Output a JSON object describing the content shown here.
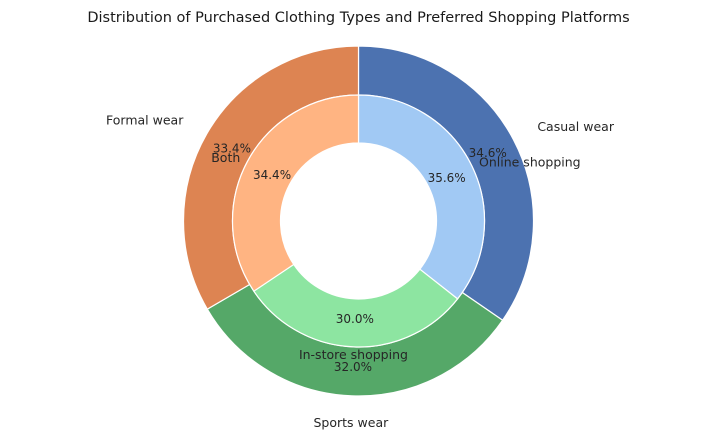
{
  "chart_data": {
    "type": "pie",
    "title": "Distribution of Purchased Clothing Types and Preferred Shopping Platforms",
    "rings": [
      {
        "name": "",
        "ring": "outer",
        "start_angle_deg": 90,
        "direction": "clockwise",
        "labels": [
          "Casual wear",
          "Sports wear",
          "Formal wear"
        ],
        "values": [
          34.6,
          32.0,
          33.4
        ],
        "pct_labels": [
          "34.6%",
          "32.0%",
          "33.4%"
        ],
        "colors": [
          "#4c72b0",
          "#55a868",
          "#dd8452"
        ]
      },
      {
        "name": "",
        "ring": "inner",
        "start_angle_deg": 90,
        "direction": "clockwise",
        "labels": [
          "Online shopping",
          "In-store shopping",
          "Both"
        ],
        "values": [
          35.6,
          30.0,
          34.4
        ],
        "pct_labels": [
          "35.6%",
          "30.0%",
          "34.4%"
        ],
        "colors": [
          "#a1c9f4",
          "#8de5a1",
          "#ffb482"
        ]
      }
    ]
  }
}
